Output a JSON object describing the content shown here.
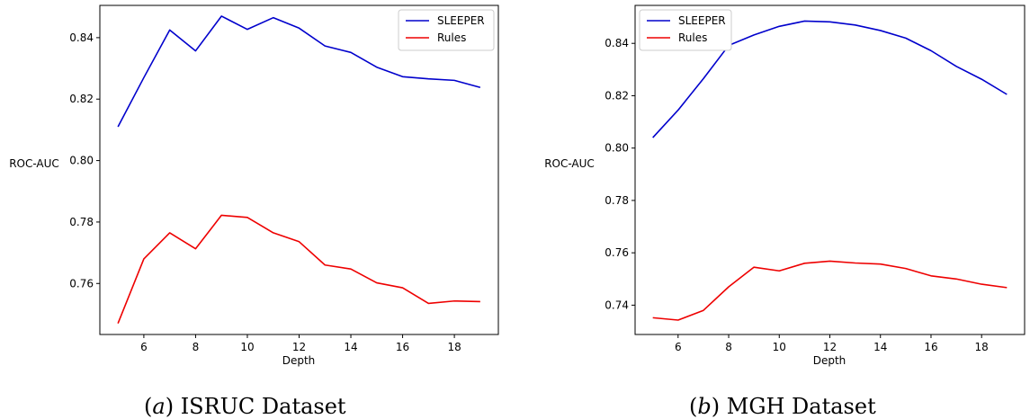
{
  "chart_data": [
    {
      "type": "line",
      "panel": "a",
      "caption_letter": "a",
      "caption": "ISRUC Dataset",
      "xlabel": "Depth",
      "ylabel": "ROC-AUC",
      "xlim": [
        4.3,
        19.7
      ],
      "ylim": [
        0.7434,
        0.8505
      ],
      "x_ticks": [
        6,
        8,
        10,
        12,
        14,
        16,
        18
      ],
      "y_ticks": [
        0.76,
        0.78,
        0.8,
        0.82,
        0.84
      ],
      "y_tick_labels": [
        "0.76",
        "0.78",
        "0.80",
        "0.82",
        "0.84"
      ],
      "legend_position": "upper-right",
      "x": [
        5,
        6,
        7,
        8,
        9,
        10,
        11,
        12,
        13,
        14,
        15,
        16,
        17,
        18,
        19
      ],
      "series": [
        {
          "name": "SLEEPER",
          "color": "#0000cc",
          "values": [
            0.811,
            0.827,
            0.8425,
            0.8357,
            0.847,
            0.8427,
            0.8465,
            0.8431,
            0.8373,
            0.8352,
            0.8304,
            0.8273,
            0.8266,
            0.8261,
            0.8238
          ]
        },
        {
          "name": "Rules",
          "color": "#ee0000",
          "values": [
            0.747,
            0.768,
            0.7765,
            0.7713,
            0.7822,
            0.7815,
            0.7765,
            0.7736,
            0.766,
            0.7647,
            0.7602,
            0.7586,
            0.7535,
            0.7543,
            0.7541
          ]
        }
      ]
    },
    {
      "type": "line",
      "panel": "b",
      "caption_letter": "b",
      "caption": "MGH Dataset",
      "xlabel": "Depth",
      "ylabel": "ROC-AUC",
      "xlim": [
        4.3,
        19.7
      ],
      "ylim": [
        0.7288,
        0.8545
      ],
      "x_ticks": [
        6,
        8,
        10,
        12,
        14,
        16,
        18
      ],
      "y_ticks": [
        0.74,
        0.76,
        0.78,
        0.8,
        0.82,
        0.84
      ],
      "y_tick_labels": [
        "0.74",
        "0.76",
        "0.78",
        "0.80",
        "0.82",
        "0.84"
      ],
      "legend_position": "upper-left",
      "x": [
        5,
        6,
        7,
        8,
        9,
        10,
        11,
        12,
        13,
        14,
        15,
        16,
        17,
        18,
        19
      ],
      "series": [
        {
          "name": "SLEEPER",
          "color": "#0000cc",
          "values": [
            0.804,
            0.8145,
            0.8265,
            0.8392,
            0.8432,
            0.8465,
            0.8485,
            0.8482,
            0.847,
            0.8449,
            0.842,
            0.8372,
            0.8312,
            0.8263,
            0.8205
          ]
        },
        {
          "name": "Rules",
          "color": "#ee0000",
          "values": [
            0.7352,
            0.7343,
            0.738,
            0.747,
            0.7545,
            0.7531,
            0.756,
            0.7568,
            0.7561,
            0.7557,
            0.754,
            0.7512,
            0.75,
            0.748,
            0.7467
          ]
        }
      ]
    }
  ]
}
